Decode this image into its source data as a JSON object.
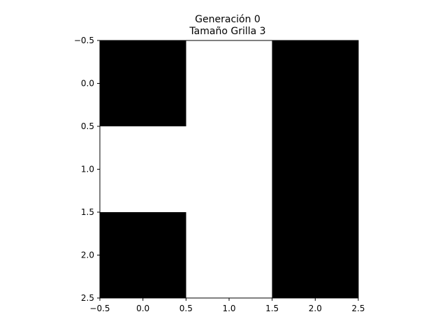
{
  "chart_data": {
    "type": "heatmap",
    "title": [
      "Generación 0",
      "Tamaño Grilla 3"
    ],
    "xlabel": "",
    "ylabel": "",
    "xlim": [
      -0.5,
      2.5
    ],
    "ylim": [
      2.5,
      -0.5
    ],
    "y_inverted": true,
    "grid": false,
    "xticks": [
      "−0.5",
      "0.0",
      "0.5",
      "1.0",
      "1.5",
      "2.0",
      "2.5"
    ],
    "yticks": [
      "−0.5",
      "0.0",
      "0.5",
      "1.0",
      "1.5",
      "2.0",
      "2.5"
    ],
    "xtick_values": [
      -0.5,
      0.0,
      0.5,
      1.0,
      1.5,
      2.0,
      2.5
    ],
    "ytick_values": [
      -0.5,
      0.0,
      0.5,
      1.0,
      1.5,
      2.0,
      2.5
    ],
    "grid_values": [
      [
        1,
        0,
        1
      ],
      [
        0,
        0,
        1
      ],
      [
        1,
        0,
        1
      ]
    ],
    "colors": {
      "1": "#000000",
      "0": "#ffffff"
    }
  }
}
